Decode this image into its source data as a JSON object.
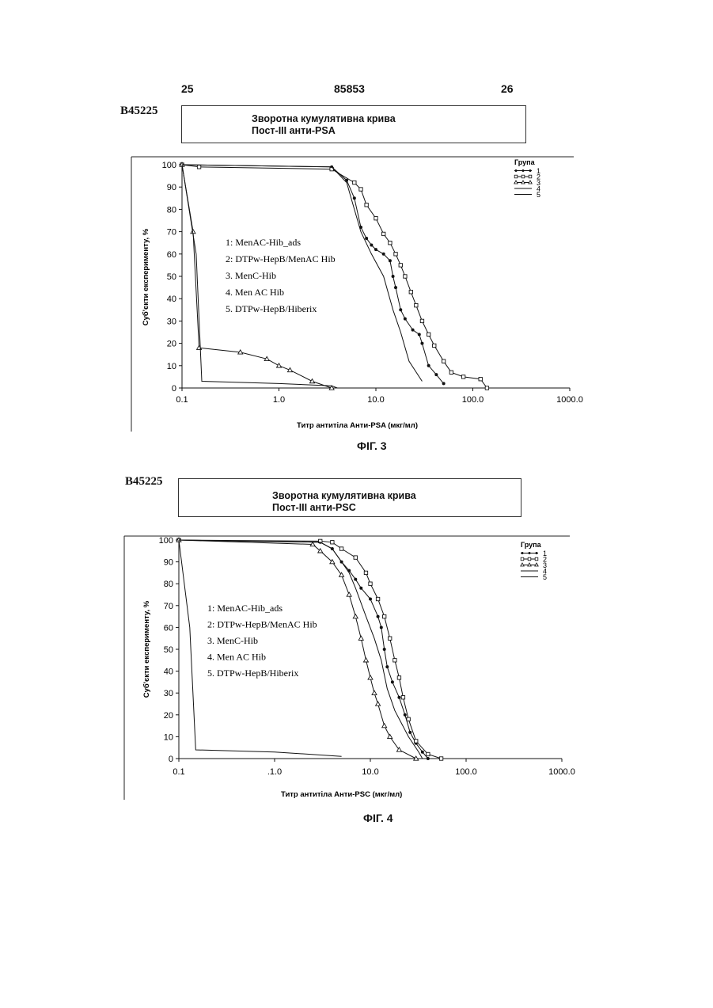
{
  "header": {
    "left_page": "25",
    "patent_no": "85853",
    "right_page": "26"
  },
  "figures": [
    {
      "code": "B45225",
      "title_line1": "Зворотна кумулятивна крива",
      "title_line2": "Пост-III анти-PSA",
      "caption": "ФІГ. 3",
      "chart_data": {
        "type": "line",
        "xscale": "log",
        "xlim": [
          0.1,
          1000
        ],
        "ylim": [
          0,
          100
        ],
        "xlabel": "Титр антитіла Анти-PSA (мкг/мл)",
        "ylabel": "Суб'єкти експерименту, %",
        "x_tick_labels": [
          "0.1",
          "1.0",
          "10.0",
          "100.0",
          "1000.0"
        ],
        "y_tick_labels": [
          "0",
          "10",
          "20",
          "30",
          "40",
          "50",
          "60",
          "70",
          "80",
          "90",
          "100"
        ],
        "legend_title": "Група",
        "legend_labels": [
          "1",
          "2",
          "3",
          "4",
          "5"
        ],
        "legend_placement": "top-right",
        "annotation_lines": [
          "1: MenAC-Hib_ads",
          "2: DTPw-HepB/MenAC Hib",
          "3. MenC-Hib",
          "4. Men AC Hib",
          "5. DTPw-HepB/Hiberix"
        ],
        "series": [
          {
            "name": "1",
            "marker": "dot",
            "points": [
              [
                0.1,
                100
              ],
              [
                3.5,
                99
              ],
              [
                5,
                93
              ],
              [
                6,
                85
              ],
              [
                7,
                72
              ],
              [
                8,
                67
              ],
              [
                9,
                64
              ],
              [
                10,
                62
              ],
              [
                12,
                60
              ],
              [
                14,
                57
              ],
              [
                15,
                50
              ],
              [
                16,
                45
              ],
              [
                18,
                35
              ],
              [
                20,
                31
              ],
              [
                24,
                26
              ],
              [
                28,
                24
              ],
              [
                30,
                20
              ],
              [
                35,
                10
              ],
              [
                42,
                6
              ],
              [
                50,
                2
              ]
            ]
          },
          {
            "name": "2",
            "marker": "square",
            "points": [
              [
                0.1,
                100
              ],
              [
                0.15,
                99
              ],
              [
                3.5,
                98
              ],
              [
                6,
                92
              ],
              [
                7,
                89
              ],
              [
                8,
                82
              ],
              [
                10,
                76
              ],
              [
                12,
                69
              ],
              [
                14,
                65
              ],
              [
                16,
                60
              ],
              [
                18,
                55
              ],
              [
                20,
                50
              ],
              [
                23,
                43
              ],
              [
                26,
                37
              ],
              [
                30,
                30
              ],
              [
                35,
                24
              ],
              [
                40,
                19
              ],
              [
                50,
                12
              ],
              [
                60,
                7
              ],
              [
                80,
                5
              ],
              [
                120,
                4
              ],
              [
                140,
                0
              ]
            ]
          },
          {
            "name": "3",
            "marker": "triangle",
            "points": [
              [
                0.1,
                100
              ],
              [
                0.13,
                70
              ],
              [
                0.15,
                18
              ],
              [
                0.4,
                16
              ],
              [
                0.75,
                13
              ],
              [
                1,
                10
              ],
              [
                1.3,
                8
              ],
              [
                2.2,
                3
              ],
              [
                3.5,
                0
              ]
            ]
          },
          {
            "name": "4",
            "marker": "none",
            "points": [
              [
                0.1,
                100
              ],
              [
                3.5,
                99
              ],
              [
                5,
                92
              ],
              [
                6,
                80
              ],
              [
                7,
                70
              ],
              [
                9,
                60
              ],
              [
                12,
                50
              ],
              [
                15,
                35
              ],
              [
                18,
                25
              ],
              [
                22,
                12
              ],
              [
                30,
                3
              ]
            ]
          },
          {
            "name": "5",
            "marker": "none",
            "points": [
              [
                0.1,
                100
              ],
              [
                0.14,
                60
              ],
              [
                0.16,
                3
              ],
              [
                1,
                2
              ],
              [
                3.5,
                1
              ],
              [
                4,
                0
              ]
            ]
          }
        ]
      }
    },
    {
      "code": "B45225",
      "title_line1": "Зворотна кумулятивна крива",
      "title_line2": "Пост-III анти-PSC",
      "caption": "ФІГ. 4",
      "chart_data": {
        "type": "line",
        "xscale": "log",
        "xlim": [
          0.1,
          1000
        ],
        "ylim": [
          0,
          100
        ],
        "xlabel": "Титр антитіла Анти-PSC (мкг/мл)",
        "ylabel": "Суб'єкти експерименту, %",
        "x_tick_labels": [
          "0.1",
          ".1.0",
          "10.0",
          "100.0",
          "1000.0"
        ],
        "y_tick_labels": [
          "0",
          "10",
          "20",
          "30",
          "40",
          "50",
          "60",
          "70",
          "80",
          "90",
          "100"
        ],
        "legend_title": "Група",
        "legend_labels": [
          "1",
          "2",
          "3",
          "4",
          "5"
        ],
        "legend_placement": "top-right",
        "annotation_lines": [
          "1: MenAC-Hib_ads",
          "2: DTPw-HepB/MenAC Hib",
          "3. MenC-Hib",
          "4. Men AC Hib",
          "5. DTPw-HepB/Hiberix"
        ],
        "series": [
          {
            "name": "1",
            "marker": "dot",
            "points": [
              [
                0.1,
                100
              ],
              [
                3,
                99
              ],
              [
                4,
                96
              ],
              [
                5,
                90
              ],
              [
                6,
                86
              ],
              [
                7,
                82
              ],
              [
                8,
                78
              ],
              [
                10,
                73
              ],
              [
                12,
                65
              ],
              [
                13,
                60
              ],
              [
                14,
                50
              ],
              [
                15,
                42
              ],
              [
                17,
                35
              ],
              [
                20,
                28
              ],
              [
                23,
                20
              ],
              [
                26,
                12
              ],
              [
                30,
                7
              ],
              [
                35,
                3
              ],
              [
                40,
                0
              ]
            ]
          },
          {
            "name": "2",
            "marker": "square",
            "points": [
              [
                0.1,
                100
              ],
              [
                3,
                99.5
              ],
              [
                4,
                99
              ],
              [
                5,
                96
              ],
              [
                7,
                92
              ],
              [
                9,
                85
              ],
              [
                10,
                80
              ],
              [
                12,
                73
              ],
              [
                14,
                65
              ],
              [
                16,
                55
              ],
              [
                18,
                45
              ],
              [
                20,
                37
              ],
              [
                22,
                28
              ],
              [
                25,
                18
              ],
              [
                30,
                8
              ],
              [
                40,
                2
              ],
              [
                55,
                0
              ]
            ]
          },
          {
            "name": "3",
            "marker": "triangle",
            "points": [
              [
                0.1,
                100
              ],
              [
                2.5,
                98
              ],
              [
                3,
                95
              ],
              [
                4,
                90
              ],
              [
                5,
                84
              ],
              [
                6,
                75
              ],
              [
                7,
                65
              ],
              [
                8,
                55
              ],
              [
                9,
                45
              ],
              [
                10,
                37
              ],
              [
                11,
                30
              ],
              [
                12,
                25
              ],
              [
                14,
                15
              ],
              [
                16,
                10
              ],
              [
                20,
                4
              ],
              [
                30,
                0
              ]
            ]
          },
          {
            "name": "4",
            "marker": "none",
            "points": [
              [
                0.1,
                100
              ],
              [
                3,
                99
              ],
              [
                4,
                96
              ],
              [
                5,
                90
              ],
              [
                6,
                85
              ],
              [
                7,
                78
              ],
              [
                9,
                65
              ],
              [
                11,
                55
              ],
              [
                13,
                45
              ],
              [
                15,
                32
              ],
              [
                18,
                22
              ],
              [
                25,
                10
              ],
              [
                32,
                3
              ],
              [
                35,
                0
              ]
            ]
          },
          {
            "name": "5",
            "marker": "none",
            "points": [
              [
                0.1,
                100
              ],
              [
                0.13,
                60
              ],
              [
                0.15,
                4
              ],
              [
                1,
                3
              ],
              [
                5,
                1
              ]
            ]
          }
        ]
      }
    }
  ]
}
